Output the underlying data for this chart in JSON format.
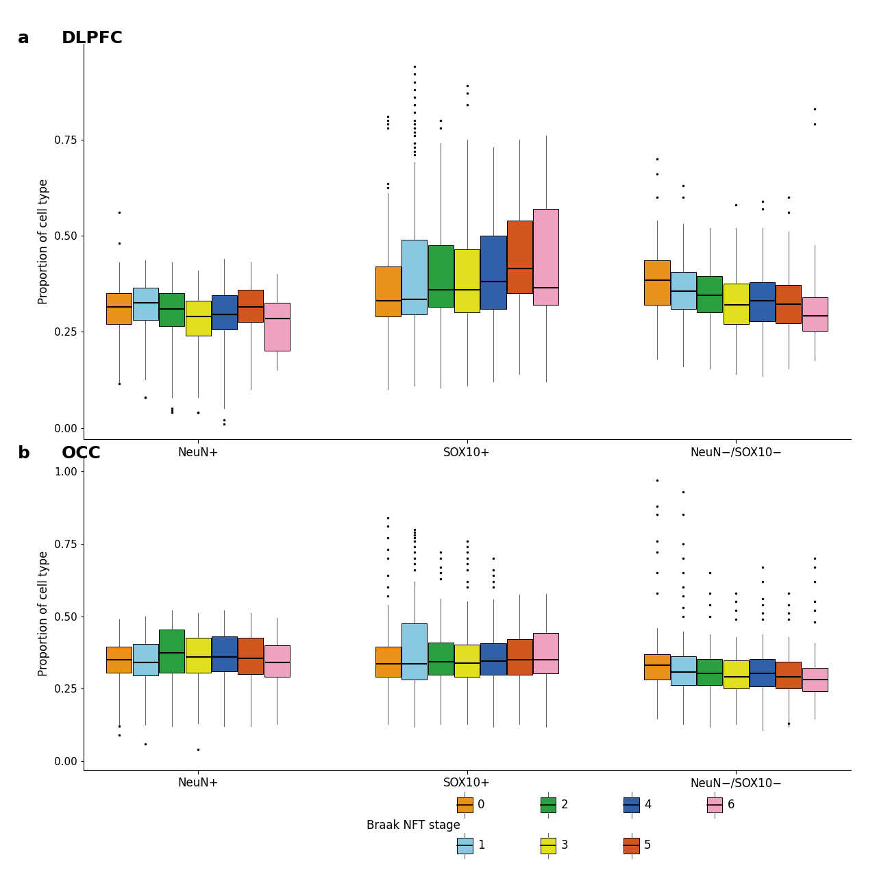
{
  "cell_types": [
    "NeuN+",
    "SOX10+",
    "NeuN−/SOX10−"
  ],
  "stages": [
    "0",
    "1",
    "2",
    "3",
    "4",
    "5",
    "6"
  ],
  "stage_colors": {
    "0": "#E8921C",
    "1": "#88C8E0",
    "2": "#2BA040",
    "3": "#E0E020",
    "4": "#3060A8",
    "5": "#D05820",
    "6": "#F0A0C0"
  },
  "ylabel": "Proportion of cell type",
  "legend_title": "Braak NFT stage",
  "panel_a_title": "DLPFC",
  "panel_b_title": "OCC",
  "panel_a": {
    "NeuN+": {
      "0": {
        "q1": 0.27,
        "median": 0.315,
        "q3": 0.35,
        "whislo": 0.115,
        "whishi": 0.43,
        "fliers_lo": [
          0.115
        ],
        "fliers_hi": [
          0.48,
          0.56
        ]
      },
      "1": {
        "q1": 0.28,
        "median": 0.325,
        "q3": 0.365,
        "whislo": 0.125,
        "whishi": 0.435,
        "fliers_lo": [
          0.08,
          0.08
        ],
        "fliers_hi": []
      },
      "2": {
        "q1": 0.265,
        "median": 0.31,
        "q3": 0.35,
        "whislo": 0.08,
        "whishi": 0.43,
        "fliers_lo": [
          0.04,
          0.045,
          0.05
        ],
        "fliers_hi": []
      },
      "3": {
        "q1": 0.24,
        "median": 0.29,
        "q3": 0.33,
        "whislo": 0.08,
        "whishi": 0.41,
        "fliers_lo": [
          0.04,
          0.04
        ],
        "fliers_hi": []
      },
      "4": {
        "q1": 0.255,
        "median": 0.295,
        "q3": 0.345,
        "whislo": 0.05,
        "whishi": 0.44,
        "fliers_lo": [
          0.01,
          0.02
        ],
        "fliers_hi": []
      },
      "5": {
        "q1": 0.275,
        "median": 0.315,
        "q3": 0.36,
        "whislo": 0.1,
        "whishi": 0.43,
        "fliers_lo": [],
        "fliers_hi": []
      },
      "6": {
        "q1": 0.2,
        "median": 0.285,
        "q3": 0.325,
        "whislo": 0.15,
        "whishi": 0.4,
        "fliers_lo": [],
        "fliers_hi": []
      }
    },
    "SOX10+": {
      "0": {
        "q1": 0.29,
        "median": 0.33,
        "q3": 0.42,
        "whislo": 0.1,
        "whishi": 0.61,
        "fliers_lo": [],
        "fliers_hi": [
          0.625,
          0.635,
          0.78,
          0.79,
          0.8,
          0.81
        ]
      },
      "1": {
        "q1": 0.295,
        "median": 0.335,
        "q3": 0.49,
        "whislo": 0.11,
        "whishi": 0.69,
        "fliers_lo": [],
        "fliers_hi": [
          0.71,
          0.72,
          0.73,
          0.74,
          0.76,
          0.77,
          0.78,
          0.79,
          0.8,
          0.82,
          0.84,
          0.86,
          0.88,
          0.9,
          0.92,
          0.94
        ]
      },
      "2": {
        "q1": 0.315,
        "median": 0.36,
        "q3": 0.475,
        "whislo": 0.105,
        "whishi": 0.74,
        "fliers_lo": [],
        "fliers_hi": [
          0.78,
          0.8
        ]
      },
      "3": {
        "q1": 0.3,
        "median": 0.36,
        "q3": 0.465,
        "whislo": 0.11,
        "whishi": 0.75,
        "fliers_lo": [],
        "fliers_hi": [
          0.84,
          0.87,
          0.89
        ]
      },
      "4": {
        "q1": 0.31,
        "median": 0.38,
        "q3": 0.5,
        "whislo": 0.12,
        "whishi": 0.73,
        "fliers_lo": [],
        "fliers_hi": []
      },
      "5": {
        "q1": 0.35,
        "median": 0.415,
        "q3": 0.54,
        "whislo": 0.14,
        "whishi": 0.75,
        "fliers_lo": [],
        "fliers_hi": []
      },
      "6": {
        "q1": 0.32,
        "median": 0.365,
        "q3": 0.57,
        "whislo": 0.12,
        "whishi": 0.76,
        "fliers_lo": [],
        "fliers_hi": []
      }
    },
    "NeuN−/SOX10−": {
      "0": {
        "q1": 0.32,
        "median": 0.385,
        "q3": 0.435,
        "whislo": 0.18,
        "whishi": 0.54,
        "fliers_lo": [],
        "fliers_hi": [
          0.6,
          0.66,
          0.7
        ]
      },
      "1": {
        "q1": 0.31,
        "median": 0.355,
        "q3": 0.405,
        "whislo": 0.16,
        "whishi": 0.53,
        "fliers_lo": [],
        "fliers_hi": [
          0.6,
          0.63
        ]
      },
      "2": {
        "q1": 0.3,
        "median": 0.345,
        "q3": 0.395,
        "whislo": 0.155,
        "whishi": 0.52,
        "fliers_lo": [],
        "fliers_hi": []
      },
      "3": {
        "q1": 0.27,
        "median": 0.32,
        "q3": 0.375,
        "whislo": 0.14,
        "whishi": 0.52,
        "fliers_lo": [],
        "fliers_hi": [
          0.58
        ]
      },
      "4": {
        "q1": 0.278,
        "median": 0.33,
        "q3": 0.378,
        "whislo": 0.135,
        "whishi": 0.52,
        "fliers_lo": [],
        "fliers_hi": [
          0.57,
          0.59
        ]
      },
      "5": {
        "q1": 0.272,
        "median": 0.322,
        "q3": 0.372,
        "whislo": 0.155,
        "whishi": 0.51,
        "fliers_lo": [],
        "fliers_hi": [
          0.56,
          0.6
        ]
      },
      "6": {
        "q1": 0.252,
        "median": 0.292,
        "q3": 0.34,
        "whislo": 0.175,
        "whishi": 0.475,
        "fliers_lo": [],
        "fliers_hi": [
          0.79,
          0.83
        ]
      }
    }
  },
  "panel_b": {
    "NeuN+": {
      "0": {
        "q1": 0.305,
        "median": 0.35,
        "q3": 0.395,
        "whislo": 0.12,
        "whishi": 0.49,
        "fliers_lo": [
          0.09,
          0.12
        ],
        "fliers_hi": []
      },
      "1": {
        "q1": 0.295,
        "median": 0.34,
        "q3": 0.405,
        "whislo": 0.125,
        "whishi": 0.5,
        "fliers_lo": [
          0.06
        ],
        "fliers_hi": []
      },
      "2": {
        "q1": 0.305,
        "median": 0.375,
        "q3": 0.455,
        "whislo": 0.12,
        "whishi": 0.52,
        "fliers_lo": [],
        "fliers_hi": []
      },
      "3": {
        "q1": 0.305,
        "median": 0.36,
        "q3": 0.425,
        "whislo": 0.13,
        "whishi": 0.51,
        "fliers_lo": [
          0.04
        ],
        "fliers_hi": []
      },
      "4": {
        "q1": 0.31,
        "median": 0.36,
        "q3": 0.43,
        "whislo": 0.12,
        "whishi": 0.52,
        "fliers_lo": [],
        "fliers_hi": []
      },
      "5": {
        "q1": 0.3,
        "median": 0.355,
        "q3": 0.425,
        "whislo": 0.12,
        "whishi": 0.51,
        "fliers_lo": [],
        "fliers_hi": []
      },
      "6": {
        "q1": 0.292,
        "median": 0.34,
        "q3": 0.4,
        "whislo": 0.128,
        "whishi": 0.495,
        "fliers_lo": [],
        "fliers_hi": []
      }
    },
    "SOX10+": {
      "0": {
        "q1": 0.29,
        "median": 0.335,
        "q3": 0.395,
        "whislo": 0.128,
        "whishi": 0.54,
        "fliers_lo": [],
        "fliers_hi": [
          0.57,
          0.6,
          0.64,
          0.7,
          0.73,
          0.77,
          0.81,
          0.84
        ]
      },
      "1": {
        "q1": 0.282,
        "median": 0.335,
        "q3": 0.475,
        "whislo": 0.118,
        "whishi": 0.62,
        "fliers_lo": [],
        "fliers_hi": [
          0.66,
          0.68,
          0.7,
          0.72,
          0.74,
          0.76,
          0.77,
          0.78,
          0.79,
          0.8
        ]
      },
      "2": {
        "q1": 0.298,
        "median": 0.342,
        "q3": 0.41,
        "whislo": 0.128,
        "whishi": 0.56,
        "fliers_lo": [],
        "fliers_hi": [
          0.63,
          0.65,
          0.67,
          0.7,
          0.72
        ]
      },
      "3": {
        "q1": 0.292,
        "median": 0.338,
        "q3": 0.402,
        "whislo": 0.128,
        "whishi": 0.55,
        "fliers_lo": [],
        "fliers_hi": [
          0.6,
          0.62,
          0.66,
          0.68,
          0.7,
          0.72,
          0.74,
          0.76
        ]
      },
      "4": {
        "q1": 0.298,
        "median": 0.345,
        "q3": 0.408,
        "whislo": 0.118,
        "whishi": 0.558,
        "fliers_lo": [],
        "fliers_hi": [
          0.6,
          0.62,
          0.64,
          0.66,
          0.7
        ]
      },
      "5": {
        "q1": 0.298,
        "median": 0.35,
        "q3": 0.42,
        "whislo": 0.128,
        "whishi": 0.575,
        "fliers_lo": [],
        "fliers_hi": []
      },
      "6": {
        "q1": 0.302,
        "median": 0.35,
        "q3": 0.442,
        "whislo": 0.118,
        "whishi": 0.578,
        "fliers_lo": [],
        "fliers_hi": []
      }
    },
    "NeuN−/SOX10−": {
      "0": {
        "q1": 0.282,
        "median": 0.332,
        "q3": 0.368,
        "whislo": 0.148,
        "whishi": 0.458,
        "fliers_lo": [],
        "fliers_hi": [
          0.58,
          0.65,
          0.72,
          0.76,
          0.85,
          0.88,
          0.97
        ]
      },
      "1": {
        "q1": 0.262,
        "median": 0.308,
        "q3": 0.362,
        "whislo": 0.128,
        "whishi": 0.448,
        "fliers_lo": [],
        "fliers_hi": [
          0.5,
          0.53,
          0.57,
          0.6,
          0.65,
          0.7,
          0.75,
          0.85,
          0.93
        ]
      },
      "2": {
        "q1": 0.262,
        "median": 0.302,
        "q3": 0.352,
        "whislo": 0.118,
        "whishi": 0.438,
        "fliers_lo": [],
        "fliers_hi": [
          0.5,
          0.54,
          0.58,
          0.65
        ]
      },
      "3": {
        "q1": 0.252,
        "median": 0.292,
        "q3": 0.348,
        "whislo": 0.128,
        "whishi": 0.428,
        "fliers_lo": [],
        "fliers_hi": [
          0.49,
          0.52,
          0.55,
          0.58
        ]
      },
      "4": {
        "q1": 0.258,
        "median": 0.302,
        "q3": 0.352,
        "whislo": 0.108,
        "whishi": 0.438,
        "fliers_lo": [],
        "fliers_hi": [
          0.49,
          0.51,
          0.54,
          0.56,
          0.62,
          0.67
        ]
      },
      "5": {
        "q1": 0.252,
        "median": 0.292,
        "q3": 0.342,
        "whislo": 0.118,
        "whishi": 0.428,
        "fliers_lo": [
          0.13
        ],
        "fliers_hi": [
          0.49,
          0.51,
          0.54,
          0.58
        ]
      },
      "6": {
        "q1": 0.242,
        "median": 0.282,
        "q3": 0.322,
        "whislo": 0.148,
        "whishi": 0.408,
        "fliers_lo": [],
        "fliers_hi": [
          0.48,
          0.52,
          0.55,
          0.62,
          0.67,
          0.7
        ]
      }
    }
  },
  "ylim_a": [
    -0.03,
    1.0
  ],
  "ylim_b": [
    -0.03,
    1.05
  ],
  "yticks_a": [
    0.0,
    0.25,
    0.5,
    0.75
  ],
  "yticks_b": [
    0.0,
    0.25,
    0.5,
    0.75,
    1.0
  ]
}
